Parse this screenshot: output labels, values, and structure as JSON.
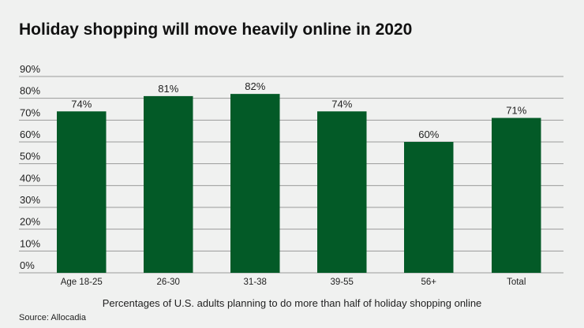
{
  "chart_data": {
    "type": "bar",
    "title": "Holiday shopping will move heavily online in 2020",
    "categories": [
      "Age 18-25",
      "26-30",
      "31-38",
      "39-55",
      "56+",
      "Total"
    ],
    "values": [
      74,
      81,
      82,
      74,
      60,
      71
    ],
    "data_labels": [
      "74%",
      "81%",
      "82%",
      "74%",
      "60%",
      "71%"
    ],
    "xlabel": "Percentages of U.S. adults planning to do more than half of holiday shopping online",
    "ylabel": "",
    "ylim": [
      0,
      90
    ],
    "yticks": [
      "0%",
      "10%",
      "20%",
      "30%",
      "40%",
      "50%",
      "60%",
      "70%",
      "80%",
      "90%"
    ],
    "grid": true,
    "source": "Source: Allocadia",
    "colors": {
      "bar": "#035a27",
      "grid": "#9a9a9a",
      "background": "#f0f1f0"
    }
  }
}
